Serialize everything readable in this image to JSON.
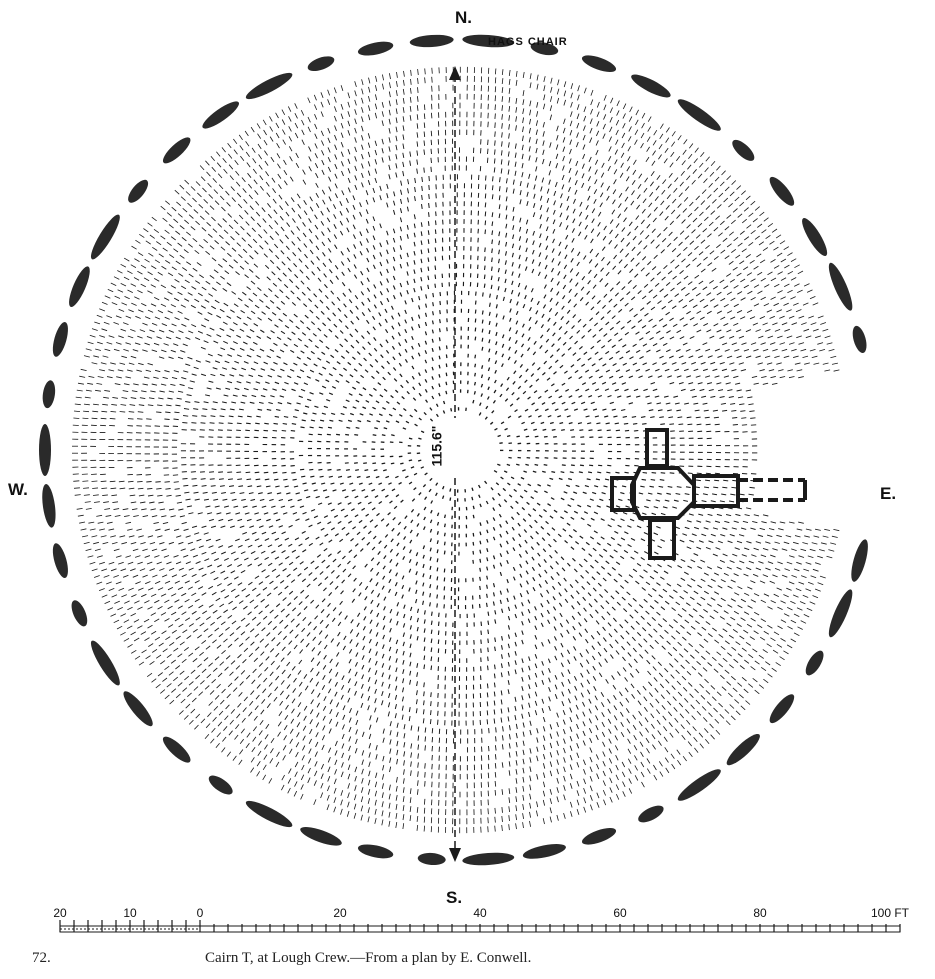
{
  "compass": {
    "north": "N.",
    "south": "S.",
    "east": "E.",
    "west": "W."
  },
  "feature_label": "HAGS CHAIR",
  "diameter_label": "115.6\"",
  "scale": {
    "ticks": [
      "20",
      "10",
      "0",
      "20",
      "40",
      "60",
      "80",
      "100 FT"
    ]
  },
  "caption": {
    "number": "72.",
    "text": "Cairn T, at Lough Crew.—From a plan by E. Conwell."
  },
  "colors": {
    "ink": "#1a1a1a",
    "stone": "#2a2a2a",
    "paper": "#ffffff"
  },
  "icons": {
    "north_arrow": "arrow-up-icon",
    "south_arrow": "arrow-down-icon"
  }
}
